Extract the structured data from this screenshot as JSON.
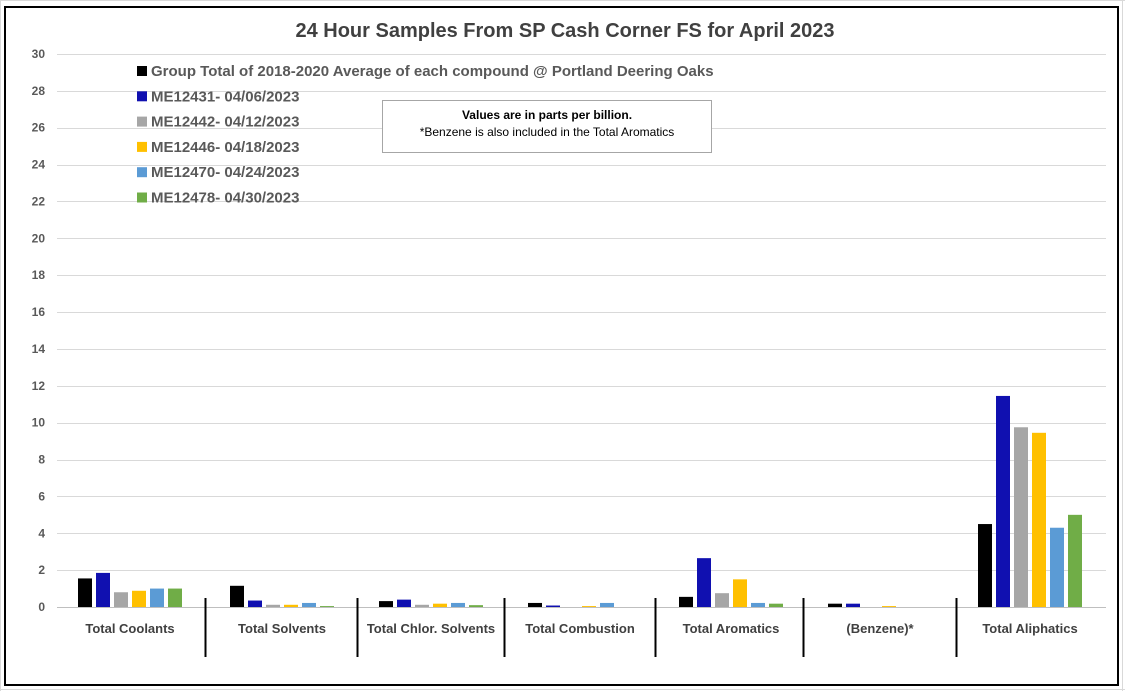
{
  "chart_data": {
    "type": "bar",
    "title": "24 Hour Samples From SP Cash Corner FS for April 2023",
    "xlabel": "",
    "ylabel": "",
    "ylim": [
      0,
      30
    ],
    "yticks": [
      0,
      2,
      4,
      6,
      8,
      10,
      12,
      14,
      16,
      18,
      20,
      22,
      24,
      26,
      28,
      30
    ],
    "grid": true,
    "legend_position": "top-left",
    "categories": [
      "Total Coolants",
      "Total Solvents",
      "Total Chlor. Solvents",
      "Total Combustion",
      "Total Aromatics",
      "(Benzene)*",
      "Total Aliphatics"
    ],
    "series": [
      {
        "name": "Group Total of 2018-2020 Average of each compound @ Portland Deering Oaks",
        "color": "#000000",
        "values": [
          1.55,
          1.15,
          0.32,
          0.22,
          0.55,
          0.18,
          4.5
        ]
      },
      {
        "name": "ME12431- 04/06/2023",
        "color": "#1010B0",
        "values": [
          1.85,
          0.35,
          0.4,
          0.08,
          2.65,
          0.18,
          11.45
        ]
      },
      {
        "name": "ME12442- 04/12/2023",
        "color": "#A6A6A6",
        "values": [
          0.8,
          0.12,
          0.12,
          0.0,
          0.75,
          0.0,
          9.75
        ]
      },
      {
        "name": "ME12446- 04/18/2023",
        "color": "#FFC000",
        "values": [
          0.88,
          0.12,
          0.18,
          0.05,
          1.5,
          0.05,
          9.45
        ]
      },
      {
        "name": "ME12470- 04/24/2023",
        "color": "#5B9BD5",
        "values": [
          1.0,
          0.22,
          0.22,
          0.22,
          0.22,
          0.0,
          4.3
        ]
      },
      {
        "name": "ME12478- 04/30/2023",
        "color": "#70AD47",
        "values": [
          1.0,
          0.05,
          0.1,
          0.0,
          0.18,
          0.0,
          5.0
        ]
      }
    ]
  },
  "note": {
    "line1": "Values are in parts per billion.",
    "line2": "*Benzene is also included in the Total Aromatics"
  }
}
